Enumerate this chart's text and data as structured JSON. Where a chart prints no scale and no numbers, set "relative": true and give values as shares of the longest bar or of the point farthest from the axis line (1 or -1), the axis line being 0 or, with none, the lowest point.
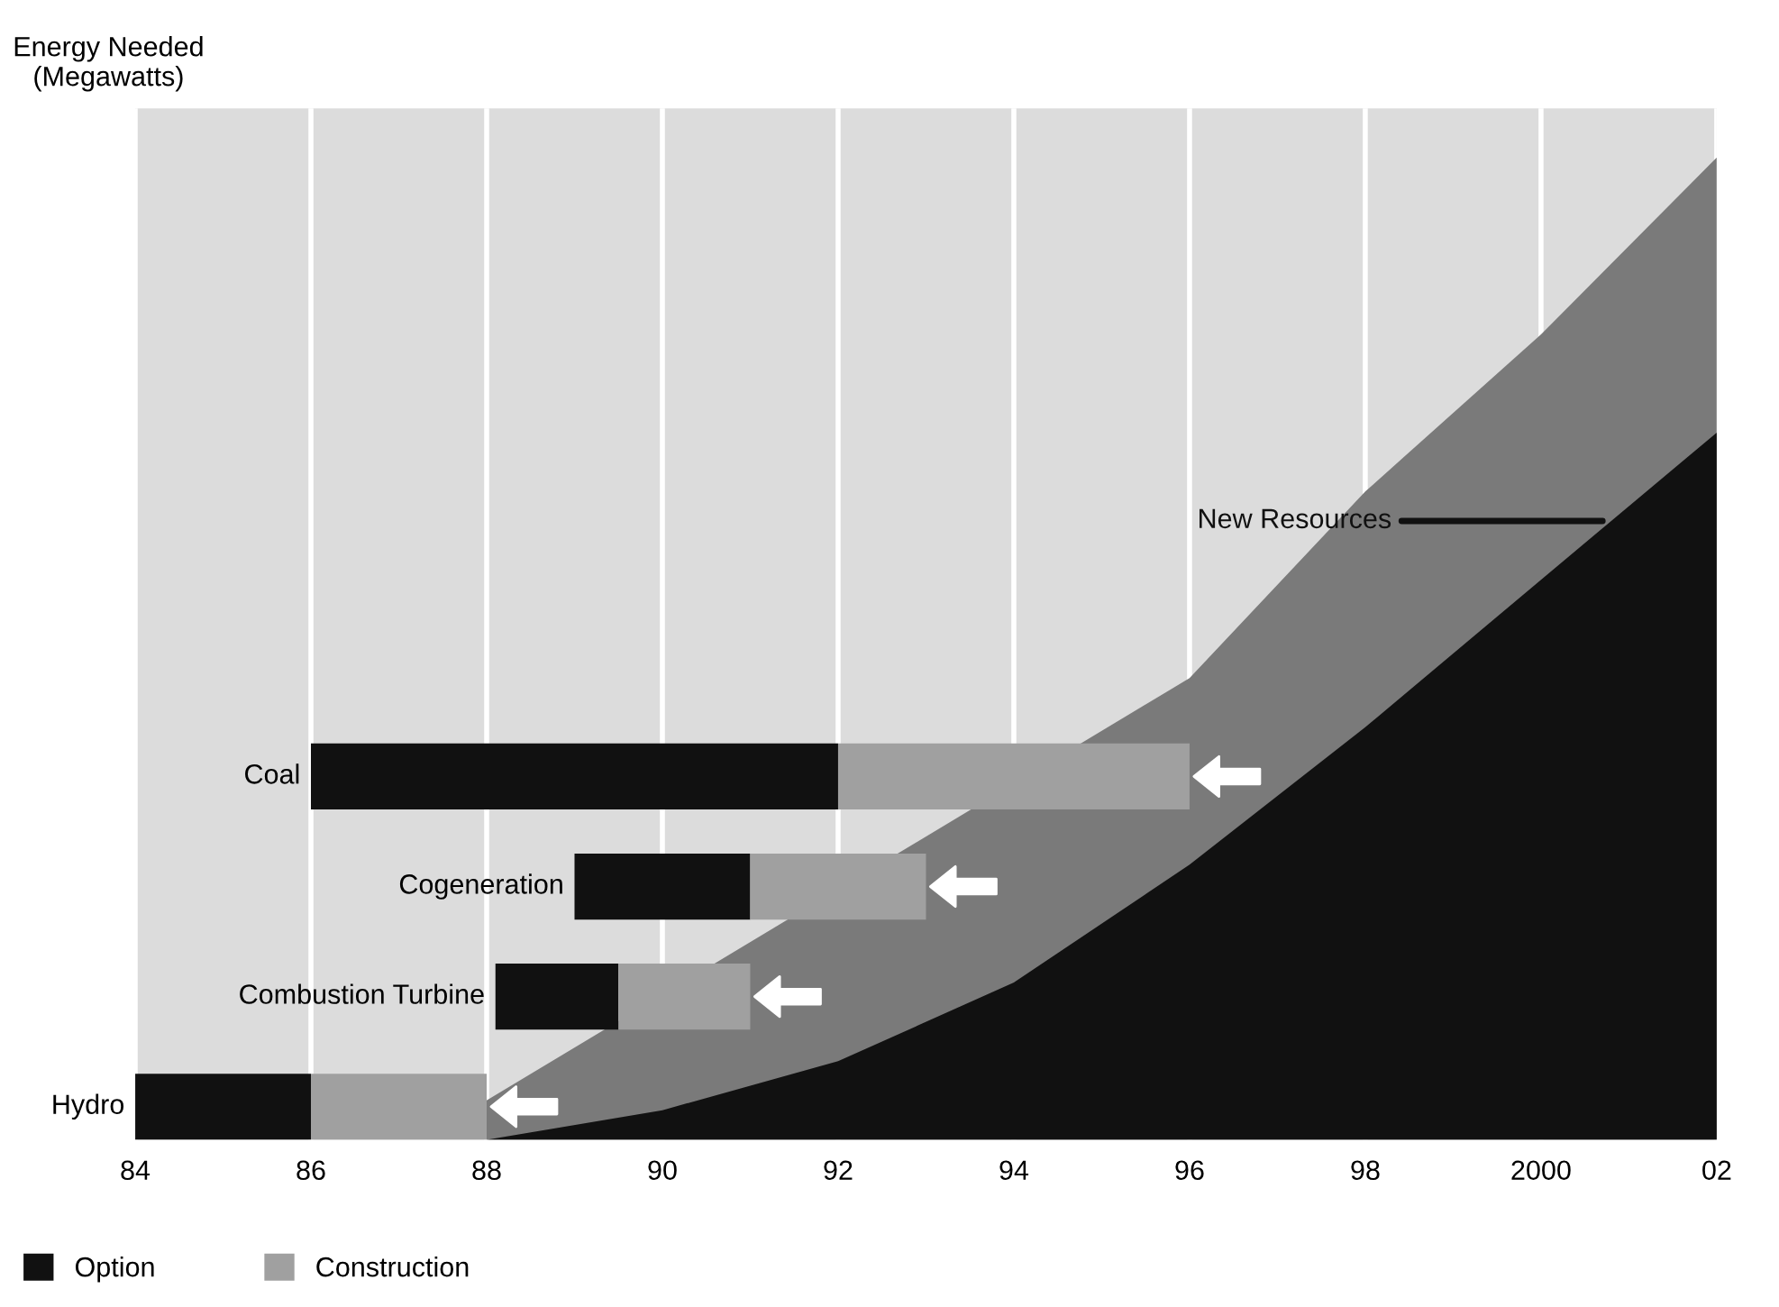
{
  "chart_data": [
    {
      "type": "area",
      "ylabel": "Energy Needed\n(Megawatts)",
      "relative": true,
      "x": [
        1988,
        1990,
        1992,
        1994,
        1996,
        1998,
        2000,
        2002
      ],
      "series": [
        {
          "color": "#7a7a7a",
          "values": [
            0.04,
            null,
            null,
            null,
            0.47,
            0.66,
            0.82,
            1.0
          ]
        },
        {
          "color": "#111111",
          "values": [
            0,
            0.03,
            0.08,
            0.16,
            0.28,
            0.42,
            0.57,
            0.72
          ]
        }
      ],
      "xlim": [
        1984,
        2002
      ],
      "xticks": [
        {
          "value": 1984,
          "label": "84"
        },
        {
          "value": 1986,
          "label": "86"
        },
        {
          "value": 1988,
          "label": "88"
        },
        {
          "value": 1990,
          "label": "90"
        },
        {
          "value": 1992,
          "label": "92"
        },
        {
          "value": 1994,
          "label": "94"
        },
        {
          "value": 1996,
          "label": "96"
        },
        {
          "value": 1998,
          "label": "98"
        },
        {
          "value": 2000,
          "label": "2000"
        },
        {
          "value": 2002,
          "label": "02"
        }
      ],
      "grid": "x",
      "annotations": [
        {
          "text": "New Resources",
          "x": 2000.7,
          "y": 0.63
        }
      ]
    },
    {
      "type": "bar",
      "orientation": "horizontal",
      "categories": [
        "Coal",
        "Cogeneration",
        "Combustion Turbine",
        "Hydro"
      ],
      "series": [
        {
          "name": "Option",
          "color": "#111111",
          "base": [
            1986,
            1989,
            1988.1,
            1984
          ],
          "values": [
            6,
            2,
            1.4,
            2
          ]
        },
        {
          "name": "Construction",
          "color": "#a0a0a0",
          "base": [
            1992,
            1991,
            1989.5,
            1986
          ],
          "values": [
            4,
            2,
            1.5,
            2
          ]
        }
      ],
      "xlim": [
        1984,
        2002
      ],
      "tick_labels": "y",
      "legend": "bottom left"
    }
  ]
}
